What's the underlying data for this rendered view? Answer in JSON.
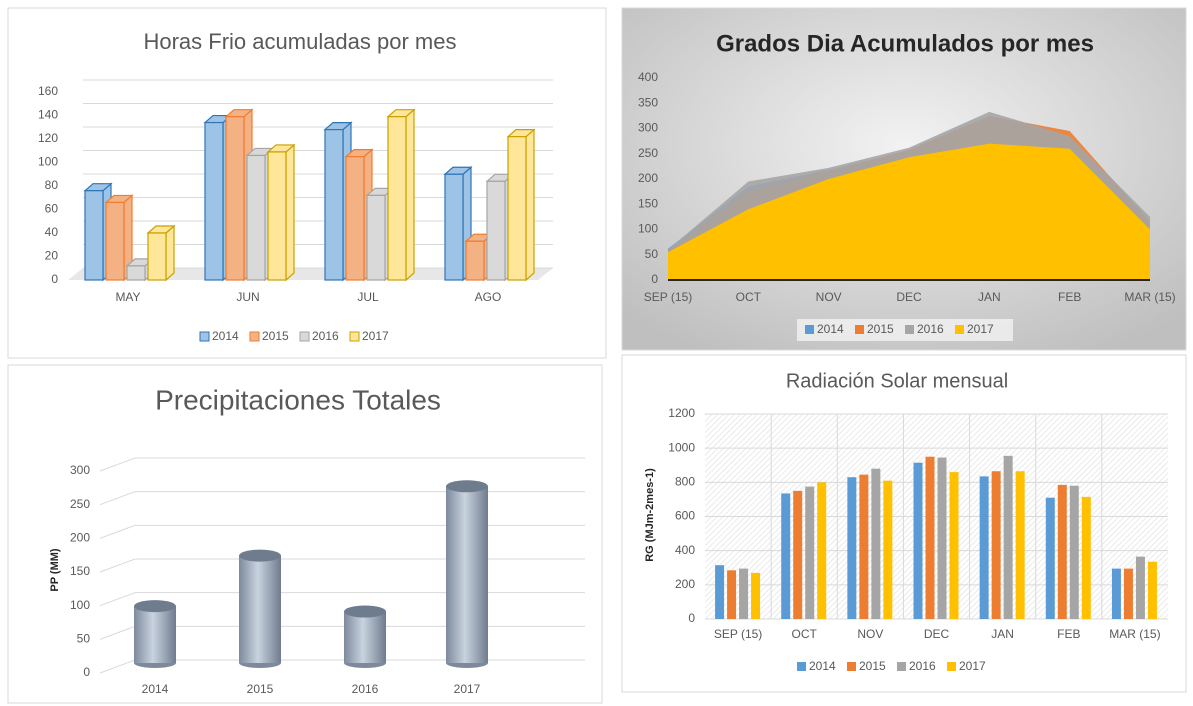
{
  "chart_data": [
    {
      "type": "bar3d",
      "title": "Horas Frio acumuladas por mes",
      "categories": [
        "MAY",
        "JUN",
        "JUL",
        "AGO"
      ],
      "series": [
        {
          "name": "2014",
          "color": "#9dc3e6",
          "values": [
            76,
            134,
            128,
            90
          ]
        },
        {
          "name": "2015",
          "color": "#f4b183",
          "values": [
            66,
            139,
            105,
            33
          ]
        },
        {
          "name": "2016",
          "color": "#d9d9d9",
          "values": [
            12,
            106,
            72,
            84
          ]
        },
        {
          "name": "2017",
          "color": "#ffe699",
          "values": [
            40,
            109,
            139,
            122
          ]
        }
      ],
      "ylim": [
        0,
        160
      ],
      "yticks": [
        0,
        20,
        40,
        60,
        80,
        100,
        120,
        140,
        160
      ],
      "grid": true
    },
    {
      "type": "area",
      "title": "Grados Dia Acumulados por mes",
      "categories": [
        "SEP (15)",
        "OCT",
        "NOV",
        "DEC",
        "JAN",
        "FEB",
        "MAR (15)"
      ],
      "series": [
        {
          "name": "2014",
          "color": "#5b9bd5",
          "values": [
            62,
            185,
            218,
            255,
            320,
            280,
            110
          ]
        },
        {
          "name": "2015",
          "color": "#ed7d31",
          "values": [
            58,
            175,
            215,
            258,
            325,
            295,
            115
          ]
        },
        {
          "name": "2016",
          "color": "#a5a5a5",
          "values": [
            60,
            195,
            222,
            262,
            333,
            285,
            125
          ]
        },
        {
          "name": "2017",
          "color": "#ffc000",
          "values": [
            55,
            140,
            200,
            243,
            270,
            260,
            100
          ]
        }
      ],
      "ylim": [
        0,
        400
      ],
      "yticks": [
        0,
        50,
        100,
        150,
        200,
        250,
        300,
        350,
        400
      ],
      "grid": false
    },
    {
      "type": "cylinder",
      "title": "Precipitaciones Totales",
      "categories": [
        "2014",
        "2015",
        "2016",
        "2017"
      ],
      "values": [
        80,
        155,
        72,
        258
      ],
      "color": "#a6b4c8",
      "ylabel": "PP (MM)",
      "ylim": [
        0,
        300
      ],
      "yticks": [
        0,
        50,
        100,
        150,
        200,
        250,
        300
      ],
      "grid": true
    },
    {
      "type": "bar",
      "title": "Radiación Solar mensual",
      "categories": [
        "SEP (15)",
        "OCT",
        "NOV",
        "DEC",
        "JAN",
        "FEB",
        "MAR (15)"
      ],
      "series": [
        {
          "name": "2014",
          "color": "#5b9bd5",
          "values": [
            315,
            735,
            830,
            915,
            835,
            710,
            295
          ]
        },
        {
          "name": "2015",
          "color": "#ed7d31",
          "values": [
            285,
            750,
            845,
            950,
            865,
            785,
            295
          ]
        },
        {
          "name": "2016",
          "color": "#a5a5a5",
          "values": [
            295,
            775,
            880,
            945,
            955,
            780,
            365
          ]
        },
        {
          "name": "2017",
          "color": "#ffc000",
          "values": [
            270,
            800,
            810,
            860,
            865,
            715,
            335
          ]
        }
      ],
      "ylabel": "RG (MJm-2mes-1)",
      "ylim": [
        0,
        1200
      ],
      "yticks": [
        0,
        200,
        400,
        600,
        800,
        1000,
        1200
      ],
      "grid": true
    }
  ]
}
